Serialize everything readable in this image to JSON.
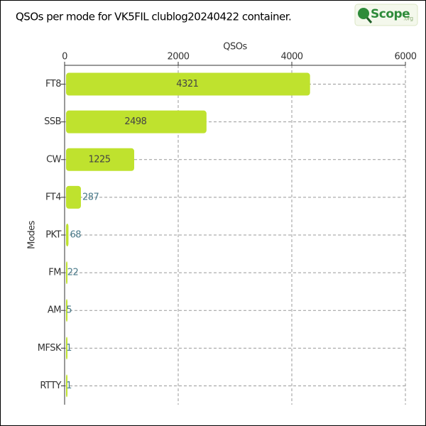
{
  "chart_data": {
    "type": "barh",
    "title": "QSOs per mode for VK5FIL clublog20240422 container.",
    "x_label": "QSOs",
    "y_label": "Modes",
    "categories": [
      "FT8",
      "SSB",
      "CW",
      "FT4",
      "PKT",
      "FM",
      "AM",
      "MFSK",
      "RTTY"
    ],
    "values": [
      4321,
      2498,
      1225,
      287,
      68,
      22,
      5,
      1,
      1
    ],
    "color": "#bfe22e",
    "xlim": [
      0,
      6000
    ],
    "xticks": [
      0,
      2000,
      4000,
      6000
    ],
    "grid": true
  },
  "logo": {
    "text": "Scope",
    "suffix": ".org"
  }
}
